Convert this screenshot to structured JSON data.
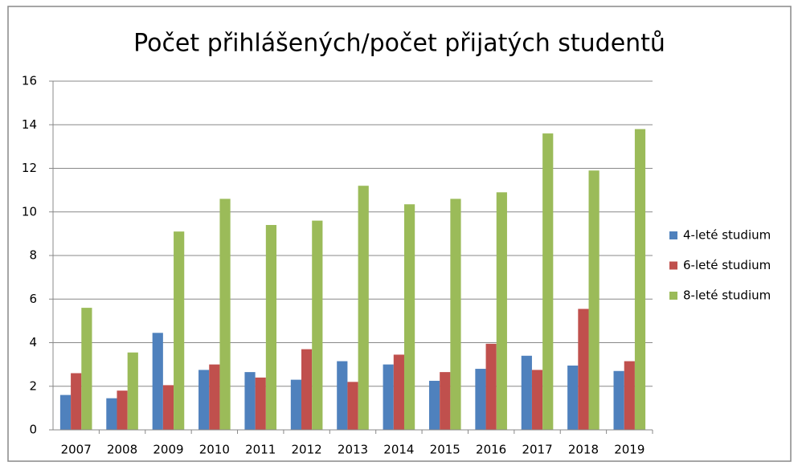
{
  "chart_data": {
    "type": "bar",
    "title": "Počet přihlášených/počet přijatých studentů",
    "categories": [
      "2007",
      "2008",
      "2009",
      "2010",
      "2011",
      "2012",
      "2013",
      "2014",
      "2015",
      "2016",
      "2017",
      "2018",
      "2019"
    ],
    "series": [
      {
        "name": "4-leté studium",
        "color": "#4f81bd",
        "values": [
          1.6,
          1.45,
          4.45,
          2.75,
          2.65,
          2.3,
          3.15,
          3.0,
          2.25,
          2.8,
          3.4,
          2.95,
          2.7
        ]
      },
      {
        "name": "6-leté studium",
        "color": "#c0504d",
        "values": [
          2.6,
          1.8,
          2.05,
          3.0,
          2.4,
          3.7,
          2.2,
          3.45,
          2.65,
          3.95,
          2.75,
          5.55,
          3.15
        ]
      },
      {
        "name": "8-leté studium",
        "color": "#9bbb59",
        "values": [
          5.6,
          3.55,
          9.1,
          10.6,
          9.4,
          9.6,
          11.2,
          10.35,
          10.6,
          10.9,
          13.6,
          11.9,
          13.8
        ]
      }
    ],
    "ylim": [
      0,
      16
    ],
    "yticks": [
      0,
      2,
      4,
      6,
      8,
      10,
      12,
      14,
      16
    ],
    "grid": true,
    "legend": "right"
  }
}
